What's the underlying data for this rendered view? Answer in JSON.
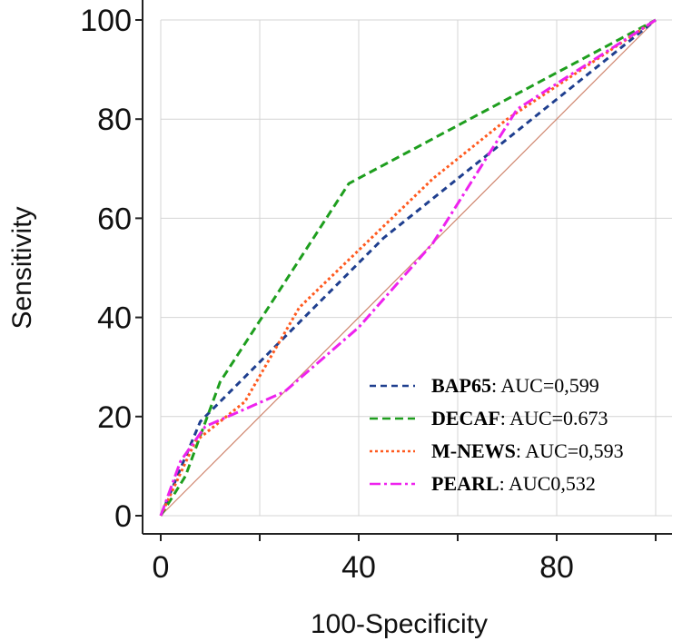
{
  "chart_data": {
    "type": "line",
    "title": "",
    "xlabel": "100-Specificity",
    "ylabel": "Sensitivity",
    "xlim": [
      0,
      100
    ],
    "ylim": [
      0,
      100
    ],
    "x_ticks": [
      "0",
      "40",
      "80"
    ],
    "y_ticks": [
      "0",
      "20",
      "40",
      "60",
      "80",
      "100"
    ],
    "grid": true,
    "legend_position": "bottom-right",
    "reference_line": {
      "x": [
        0,
        100
      ],
      "y": [
        0,
        100
      ],
      "color": "#d08770"
    },
    "series": [
      {
        "name": "BAP65",
        "auc_text": ": AUC=0,599",
        "color": "#1f3f8f",
        "dash": "7,5",
        "x": [
          0,
          8,
          25,
          45,
          70,
          100
        ],
        "y": [
          0,
          19,
          36,
          56,
          76,
          100
        ]
      },
      {
        "name": "DECAF",
        "auc_text": ": AUC=0.673",
        "color": "#1e9e1e",
        "dash": "9,5",
        "x": [
          0,
          5,
          12,
          38,
          100
        ],
        "y": [
          0,
          8,
          27,
          67,
          100
        ]
      },
      {
        "name": "M-NEWS",
        "auc_text": ": AUC=0,593",
        "color": "#ff5a1f",
        "dash": "3,3",
        "x": [
          0,
          7,
          17,
          28,
          55,
          70,
          100
        ],
        "y": [
          0,
          15,
          23,
          42,
          68,
          80,
          100
        ]
      },
      {
        "name": "PEARL",
        "auc_text": ": AUC0,532",
        "color": "#ee22ee",
        "dash": "12,4,3,4",
        "x": [
          0,
          4,
          9,
          25,
          40,
          55,
          72,
          100
        ],
        "y": [
          0,
          11,
          18,
          25,
          38,
          55,
          82,
          100
        ]
      }
    ]
  }
}
